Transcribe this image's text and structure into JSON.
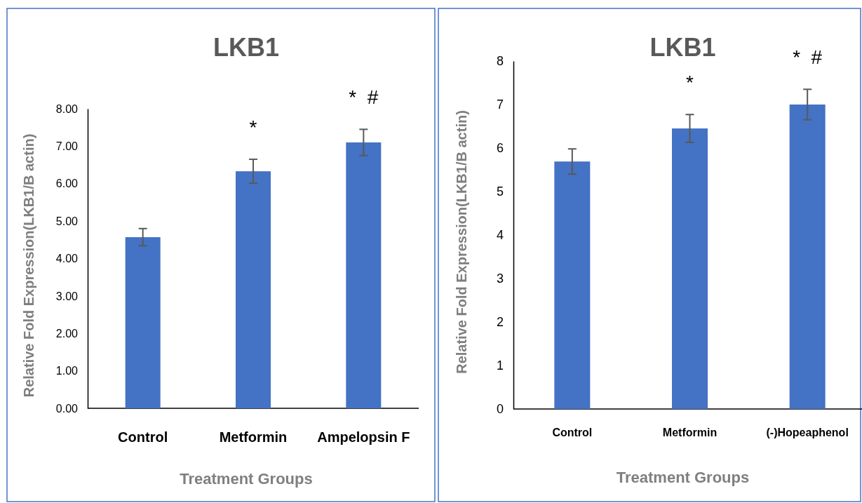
{
  "chart_data": [
    {
      "type": "bar",
      "title": "LKB1",
      "xlabel": "Treatment Groups",
      "ylabel": "Relative Fold Expression(LKB1/B actin)",
      "categories": [
        "Control",
        "Metformin",
        "Ampelopsin F"
      ],
      "series": [
        {
          "color": "#4472c4",
          "values": [
            4.57,
            6.33,
            7.1
          ],
          "errors": [
            0.23,
            0.32,
            0.35
          ]
        }
      ],
      "ylim": [
        0,
        8
      ],
      "yticks": [
        {
          "value": 0,
          "label": "0.00"
        },
        {
          "value": 1,
          "label": "1.00"
        },
        {
          "value": 2,
          "label": "2.00"
        },
        {
          "value": 3,
          "label": "3.00"
        },
        {
          "value": 4,
          "label": "4.00"
        },
        {
          "value": 5,
          "label": "5.00"
        },
        {
          "value": 6,
          "label": "6.00"
        },
        {
          "value": 7,
          "label": "7.00"
        },
        {
          "value": 8,
          "label": "8.00"
        }
      ],
      "annotations": [
        "*",
        "*  #"
      ]
    },
    {
      "type": "bar",
      "title": "LKB1",
      "xlabel": "Treatment Groups",
      "ylabel": "Relative Fold Expression(LKB1/B actin)",
      "categories": [
        "Control",
        "Metformin",
        "(-)Hopeaphenol"
      ],
      "series": [
        {
          "color": "#4472c4",
          "values": [
            5.69,
            6.45,
            7.0
          ],
          "errors": [
            0.29,
            0.32,
            0.35
          ]
        }
      ],
      "ylim": [
        0,
        8
      ],
      "yticks": [
        0,
        1,
        2,
        3,
        4,
        5,
        6,
        7,
        8
      ],
      "annotations": [
        "*",
        "*  #"
      ]
    }
  ]
}
